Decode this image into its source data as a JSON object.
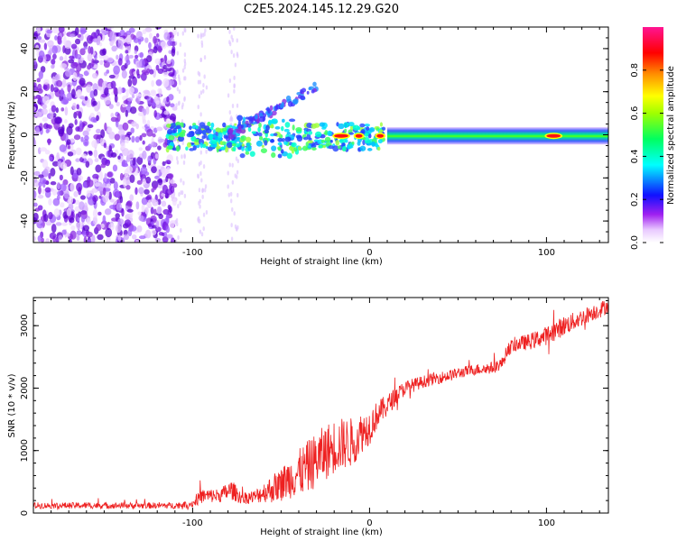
{
  "title": "C2E5.2024.145.12.29.G20",
  "chart_data": [
    {
      "type": "heatmap",
      "xlabel": "Height of straight line (km)",
      "ylabel": "Frequency (Hz)",
      "xlim": [
        -190,
        135
      ],
      "ylim": [
        -50,
        50
      ],
      "xticks": [
        -100,
        0,
        100
      ],
      "yticks": [
        -40,
        -20,
        0,
        20,
        40
      ],
      "colorbar": {
        "label": "Normalized spectral amplitude",
        "range": [
          0,
          1
        ],
        "ticks": [
          0.0,
          0.2,
          0.4,
          0.6,
          0.8
        ],
        "tick_labels": [
          "0.0",
          "0.2",
          "0.4",
          "0.6",
          "0.8"
        ],
        "colormap": [
          "#ffffff",
          "#a020f0",
          "#0000ff",
          "#00ffff",
          "#00ff00",
          "#ffff00",
          "#ff8000",
          "#ff0000",
          "#ff00a0"
        ]
      },
      "features": {
        "noise_region_x": [
          -190,
          -110
        ],
        "signal_start_x": -115,
        "signal_center_freq": -1,
        "diagonal_branch": {
          "x": [
            -80,
            -30
          ],
          "freq": [
            0,
            22
          ]
        },
        "saturated_segments_x": [
          [
            -20,
            -12
          ],
          [
            -8,
            -4
          ],
          [
            4,
            8
          ],
          [
            100,
            108
          ]
        ]
      }
    },
    {
      "type": "line",
      "xlabel": "Height of straight line (km)",
      "ylabel": "SNR (10 * v/v)",
      "xlim": [
        -190,
        135
      ],
      "ylim": [
        0,
        3450
      ],
      "xticks": [
        -100,
        0,
        100
      ],
      "yticks": [
        0,
        1000,
        2000,
        3000
      ],
      "series": [
        {
          "color": "#ee2020",
          "x": [
            -190,
            -150,
            -110,
            -100,
            -95,
            -85,
            -78,
            -72,
            -65,
            -60,
            -55,
            -50,
            -45,
            -40,
            -35,
            -30,
            -25,
            -20,
            -15,
            -10,
            -5,
            0,
            5,
            10,
            15,
            20,
            25,
            30,
            35,
            40,
            45,
            50,
            55,
            60,
            65,
            70,
            75,
            78,
            82,
            86,
            90,
            95,
            100,
            105,
            110,
            115,
            120,
            125,
            130,
            135
          ],
          "values": [
            120,
            120,
            120,
            150,
            270,
            280,
            370,
            240,
            260,
            330,
            390,
            460,
            560,
            640,
            740,
            850,
            970,
            1070,
            1110,
            1130,
            1280,
            1380,
            1600,
            1720,
            1880,
            2000,
            2050,
            2100,
            2140,
            2170,
            2200,
            2240,
            2270,
            2300,
            2310,
            2330,
            2400,
            2620,
            2700,
            2720,
            2740,
            2790,
            2840,
            2920,
            3000,
            3060,
            3130,
            3200,
            3250,
            3330
          ],
          "noise_amplitude": [
            50,
            50,
            50,
            60,
            120,
            110,
            160,
            100,
            110,
            160,
            230,
            270,
            330,
            380,
            420,
            440,
            450,
            440,
            420,
            400,
            330,
            290,
            210,
            180,
            140,
            120,
            110,
            100,
            100,
            95,
            95,
            90,
            90,
            90,
            95,
            95,
            100,
            110,
            120,
            120,
            130,
            140,
            150,
            160,
            160,
            150,
            140,
            130,
            130,
            120
          ]
        }
      ]
    }
  ]
}
